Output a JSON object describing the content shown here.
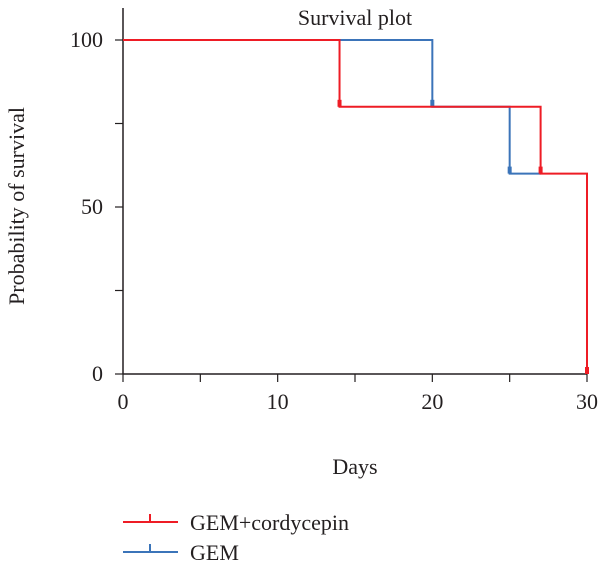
{
  "chart_data": {
    "type": "line",
    "step": true,
    "title": "Survival plot",
    "xlabel": "Days",
    "ylabel": "Probability of survival",
    "xlim": [
      0,
      30
    ],
    "ylim": [
      0,
      100
    ],
    "x_ticks": [
      0,
      10,
      20,
      30
    ],
    "y_ticks": [
      0,
      50,
      100
    ],
    "grid": false,
    "legend_position": "bottom-left",
    "series": [
      {
        "name": "GEM+cordycepin",
        "color": "#ee1c25",
        "x": [
          0,
          14,
          14,
          27,
          27,
          30,
          30
        ],
        "y": [
          100,
          100,
          80,
          80,
          60,
          60,
          0
        ],
        "censor_marks": [
          {
            "x": 14,
            "y": 80
          },
          {
            "x": 27,
            "y": 60
          },
          {
            "x": 30,
            "y": 0
          }
        ]
      },
      {
        "name": "GEM",
        "color": "#3b74b9",
        "x": [
          0,
          20,
          20,
          25,
          25,
          27
        ],
        "y": [
          100,
          100,
          80,
          80,
          60,
          60
        ],
        "censor_marks": [
          {
            "x": 20,
            "y": 80
          },
          {
            "x": 25,
            "y": 60
          }
        ]
      }
    ]
  }
}
